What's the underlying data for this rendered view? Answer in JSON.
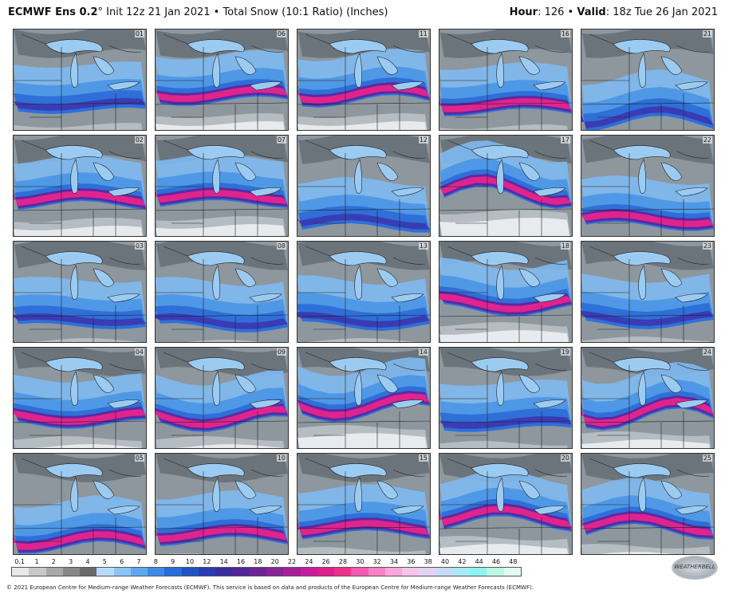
{
  "header": {
    "model": "ECMWF Ens 0.2",
    "init": "° Init 12z 21 Jan 2021 • Total Snow (10:1 Ratio) (Inches)",
    "hour_label": "Hour",
    "hour_value": ": 126 •",
    "valid_label": "Valid",
    "valid_value": ": 18z Tue 26 Jan 2021"
  },
  "members": [
    "01",
    "06",
    "11",
    "16",
    "21",
    "02",
    "07",
    "12",
    "17",
    "22",
    "03",
    "08",
    "13",
    "18",
    "23",
    "04",
    "09",
    "14",
    "19",
    "24",
    "05",
    "10",
    "15",
    "20",
    "25"
  ],
  "legend": {
    "labels": [
      "0.1",
      "1",
      "2",
      "3",
      "4",
      "5",
      "6",
      "7",
      "8",
      "9",
      "10",
      "12",
      "14",
      "16",
      "18",
      "20",
      "22",
      "24",
      "26",
      "28",
      "30",
      "32",
      "34",
      "36",
      "38",
      "40",
      "42",
      "44",
      "46",
      "48"
    ],
    "colors": [
      "#e8e8e8",
      "#c8c8c8",
      "#a8a8a8",
      "#888888",
      "#6a6a6a",
      "#b8dcf8",
      "#8cc4f4",
      "#5fa8ee",
      "#3f8ae6",
      "#2a6cd8",
      "#1f52c6",
      "#2a3cb4",
      "#3a2ca0",
      "#54269a",
      "#6e2496",
      "#8a2298",
      "#aa1e9a",
      "#c81c9c",
      "#e0208e",
      "#f0308a",
      "#f45ab0",
      "#f882c6",
      "#fba6dc",
      "#f6c4ea",
      "#e4d2f4",
      "#c4dcf8",
      "#a8eaf6",
      "#8ef4ee",
      "#bdf7e8",
      "#e4fbf4"
    ]
  },
  "logo": {
    "text": "WEATHERBELL"
  },
  "footer": {
    "text": "© 2021 European Centre for Medium-range Weather Forecasts (ECMWF). This service is based on data and products of the European Centre for Medium-range Weather Forecasts (ECMWF)."
  }
}
